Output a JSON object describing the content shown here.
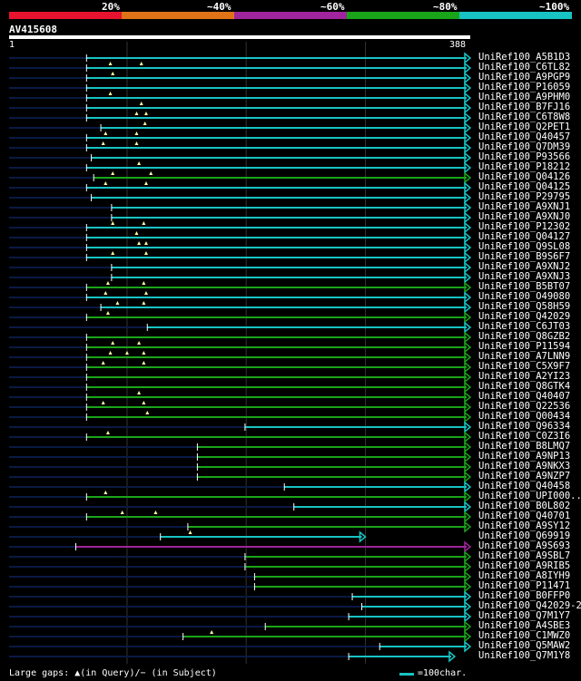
{
  "legend": {
    "labels": [
      "20%",
      "~40%",
      "~60%",
      "~80%",
      "~100%"
    ],
    "colors": [
      "#e8132f",
      "#e07318",
      "#a0249b",
      "#1aa41a",
      "#17c3c3"
    ]
  },
  "query": {
    "name": "AV415608",
    "start": "1",
    "end": "388",
    "length": 388
  },
  "footer": {
    "gaps_text": "Large gaps: ▲(in Query)/− (in Subject)",
    "scale_text": "=100char."
  },
  "colors": {
    "cyan": "#17c3c3",
    "green": "#1aa41a",
    "magenta": "#a0249b",
    "dim": "#0a1a44",
    "grid": "#333333"
  },
  "hits": [
    {
      "name": "UniRef100_A5B1D3",
      "start": 66,
      "end": 388,
      "color": "cyan",
      "marks": []
    },
    {
      "name": "UniRef100_C6TL82",
      "start": 66,
      "end": 388,
      "color": "cyan",
      "marks": [
        86,
        112
      ]
    },
    {
      "name": "UniRef100_A9PGP9",
      "start": 66,
      "end": 388,
      "color": "cyan",
      "marks": [
        88
      ]
    },
    {
      "name": "UniRef100_P16059",
      "start": 66,
      "end": 388,
      "color": "cyan",
      "marks": []
    },
    {
      "name": "UniRef100_A9PHM0",
      "start": 66,
      "end": 388,
      "color": "cyan",
      "marks": [
        86
      ]
    },
    {
      "name": "UniRef100_B7FJ16",
      "start": 66,
      "end": 388,
      "color": "cyan",
      "marks": [
        112
      ]
    },
    {
      "name": "UniRef100_C6T8W8",
      "start": 66,
      "end": 388,
      "color": "cyan",
      "marks": [
        108,
        116
      ]
    },
    {
      "name": "UniRef100_Q2PET1",
      "start": 78,
      "end": 388,
      "color": "cyan",
      "marks": [
        115
      ]
    },
    {
      "name": "UniRef100_Q40457",
      "start": 66,
      "end": 388,
      "color": "cyan",
      "marks": [
        82,
        108
      ]
    },
    {
      "name": "UniRef100_Q7DM39",
      "start": 66,
      "end": 388,
      "color": "cyan",
      "marks": [
        80,
        108
      ]
    },
    {
      "name": "UniRef100_P93566",
      "start": 70,
      "end": 388,
      "color": "cyan",
      "marks": []
    },
    {
      "name": "UniRef100_P18212",
      "start": 66,
      "end": 388,
      "color": "cyan",
      "marks": [
        110
      ]
    },
    {
      "name": "UniRef100_Q04126",
      "start": 72,
      "end": 388,
      "color": "green",
      "marks": [
        88,
        120
      ]
    },
    {
      "name": "UniRef100_Q04125",
      "start": 66,
      "end": 388,
      "color": "cyan",
      "marks": [
        82,
        116
      ]
    },
    {
      "name": "UniRef100_P29795",
      "start": 70,
      "end": 388,
      "color": "cyan",
      "marks": []
    },
    {
      "name": "UniRef100_A9XNJ1",
      "start": 87,
      "end": 388,
      "color": "cyan",
      "marks": []
    },
    {
      "name": "UniRef100_A9XNJ0",
      "start": 87,
      "end": 388,
      "color": "cyan",
      "marks": []
    },
    {
      "name": "UniRef100_P12302",
      "start": 66,
      "end": 388,
      "color": "cyan",
      "marks": [
        88,
        114
      ]
    },
    {
      "name": "UniRef100_Q04127",
      "start": 66,
      "end": 388,
      "color": "cyan",
      "marks": [
        108
      ]
    },
    {
      "name": "UniRef100_Q9SL08",
      "start": 66,
      "end": 388,
      "color": "cyan",
      "marks": [
        110,
        116
      ]
    },
    {
      "name": "UniRef100_B9S6F7",
      "start": 66,
      "end": 388,
      "color": "cyan",
      "marks": [
        88,
        116
      ]
    },
    {
      "name": "UniRef100_A9XNJ2",
      "start": 87,
      "end": 388,
      "color": "cyan",
      "marks": []
    },
    {
      "name": "UniRef100_A9XNJ3",
      "start": 87,
      "end": 388,
      "color": "cyan",
      "marks": []
    },
    {
      "name": "UniRef100_B5BT07",
      "start": 66,
      "end": 388,
      "color": "green",
      "marks": [
        84,
        114
      ]
    },
    {
      "name": "UniRef100_O49080",
      "start": 66,
      "end": 388,
      "color": "cyan",
      "marks": [
        82,
        116
      ]
    },
    {
      "name": "UniRef100_Q58H59",
      "start": 78,
      "end": 388,
      "color": "cyan",
      "marks": [
        92,
        114
      ]
    },
    {
      "name": "UniRef100_Q42029",
      "start": 66,
      "end": 388,
      "color": "green",
      "marks": [
        84
      ]
    },
    {
      "name": "UniRef100_C6JT03",
      "start": 117,
      "end": 388,
      "color": "cyan",
      "marks": []
    },
    {
      "name": "UniRef100_Q8GZB2",
      "start": 66,
      "end": 388,
      "color": "green",
      "marks": []
    },
    {
      "name": "UniRef100_P11594",
      "start": 66,
      "end": 388,
      "color": "green",
      "marks": [
        88,
        110
      ]
    },
    {
      "name": "UniRef100_A7LNN9",
      "start": 66,
      "end": 388,
      "color": "green",
      "marks": [
        86,
        100,
        114
      ]
    },
    {
      "name": "UniRef100_C5X9F7",
      "start": 66,
      "end": 388,
      "color": "green",
      "marks": [
        80,
        114
      ]
    },
    {
      "name": "UniRef100_A2YI23",
      "start": 66,
      "end": 388,
      "color": "green",
      "marks": []
    },
    {
      "name": "UniRef100_Q8GTK4",
      "start": 66,
      "end": 388,
      "color": "green",
      "marks": []
    },
    {
      "name": "UniRef100_Q40407",
      "start": 66,
      "end": 388,
      "color": "green",
      "marks": [
        110
      ]
    },
    {
      "name": "UniRef100_Q22536",
      "start": 66,
      "end": 388,
      "color": "green",
      "marks": [
        80,
        114
      ]
    },
    {
      "name": "UniRef100_Q00434",
      "start": 66,
      "end": 388,
      "color": "green",
      "marks": [
        117
      ]
    },
    {
      "name": "UniRef100_Q96334",
      "start": 199,
      "end": 388,
      "color": "cyan",
      "marks": []
    },
    {
      "name": "UniRef100_C0Z3I6",
      "start": 66,
      "end": 388,
      "color": "green",
      "marks": [
        84
      ]
    },
    {
      "name": "UniRef100_B8LMQ7",
      "start": 159,
      "end": 388,
      "color": "green",
      "marks": []
    },
    {
      "name": "UniRef100_A9NP13",
      "start": 159,
      "end": 388,
      "color": "green",
      "marks": []
    },
    {
      "name": "UniRef100_A9NKX3",
      "start": 159,
      "end": 388,
      "color": "green",
      "marks": []
    },
    {
      "name": "UniRef100_A9NZP7",
      "start": 159,
      "end": 388,
      "color": "green",
      "marks": []
    },
    {
      "name": "UniRef100_Q40458",
      "start": 232,
      "end": 388,
      "color": "cyan",
      "marks": []
    },
    {
      "name": "UniRef100_UPI000..",
      "start": 66,
      "end": 388,
      "color": "green",
      "marks": [
        82
      ]
    },
    {
      "name": "UniRef100_B0L802",
      "start": 240,
      "end": 388,
      "color": "cyan",
      "marks": []
    },
    {
      "name": "UniRef100_Q40701",
      "start": 66,
      "end": 388,
      "color": "green",
      "marks": [
        96,
        124
      ]
    },
    {
      "name": "UniRef100_A9SY12",
      "start": 151,
      "end": 388,
      "color": "green",
      "marks": []
    },
    {
      "name": "UniRef100_Q69919",
      "start": 128,
      "end": 300,
      "color": "cyan",
      "marks": [
        153
      ]
    },
    {
      "name": "UniRef100_A9S693",
      "start": 57,
      "end": 388,
      "color": "magenta",
      "marks": []
    },
    {
      "name": "UniRef100_A9SBL7",
      "start": 199,
      "end": 388,
      "color": "green",
      "marks": []
    },
    {
      "name": "UniRef100_A9RIB5",
      "start": 199,
      "end": 388,
      "color": "green",
      "marks": []
    },
    {
      "name": "UniRef100_A8IYH9",
      "start": 207,
      "end": 388,
      "color": "green",
      "marks": []
    },
    {
      "name": "UniRef100_P11471",
      "start": 207,
      "end": 388,
      "color": "green",
      "marks": []
    },
    {
      "name": "UniRef100_B0FFP0",
      "start": 289,
      "end": 388,
      "color": "cyan",
      "marks": []
    },
    {
      "name": "UniRef100_Q42029-2",
      "start": 297,
      "end": 388,
      "color": "cyan",
      "marks": []
    },
    {
      "name": "UniRef100_Q7M1Y7",
      "start": 286,
      "end": 388,
      "color": "cyan",
      "marks": []
    },
    {
      "name": "UniRef100_A4SBE3",
      "start": 216,
      "end": 388,
      "color": "green",
      "marks": []
    },
    {
      "name": "UniRef100_C1MWZ0",
      "start": 147,
      "end": 388,
      "color": "green",
      "marks": [
        171
      ]
    },
    {
      "name": "UniRef100_Q5MAW2",
      "start": 312,
      "end": 388,
      "color": "cyan",
      "marks": []
    },
    {
      "name": "UniRef100_Q7M1Y8",
      "start": 286,
      "end": 375,
      "color": "cyan",
      "marks": []
    }
  ]
}
